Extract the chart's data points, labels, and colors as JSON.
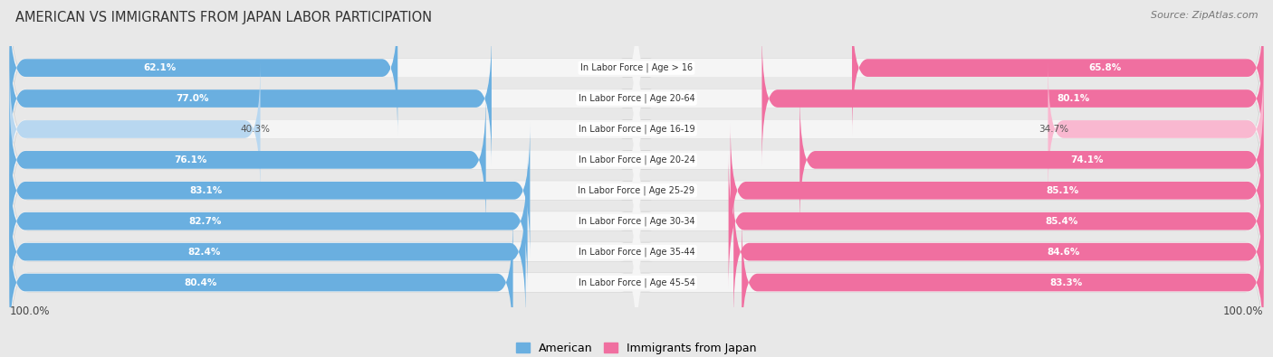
{
  "title": "AMERICAN VS IMMIGRANTS FROM JAPAN LABOR PARTICIPATION",
  "source": "Source: ZipAtlas.com",
  "categories": [
    "In Labor Force | Age > 16",
    "In Labor Force | Age 20-64",
    "In Labor Force | Age 16-19",
    "In Labor Force | Age 20-24",
    "In Labor Force | Age 25-29",
    "In Labor Force | Age 30-34",
    "In Labor Force | Age 35-44",
    "In Labor Force | Age 45-54"
  ],
  "american_values": [
    62.1,
    77.0,
    40.3,
    76.1,
    83.1,
    82.7,
    82.4,
    80.4
  ],
  "japan_values": [
    65.8,
    80.1,
    34.7,
    74.1,
    85.1,
    85.4,
    84.6,
    83.3
  ],
  "american_color": "#6aafe0",
  "american_color_light": "#b8d7f0",
  "japan_color": "#f06fa0",
  "japan_color_light": "#f9b8d0",
  "row_bg_color": "#f5f5f5",
  "outer_bg_color": "#e8e8e8",
  "max_value": 100.0,
  "bar_height": 0.62,
  "legend_american": "American",
  "legend_japan": "Immigrants from Japan",
  "title_fontsize": 10.5,
  "source_fontsize": 8,
  "label_fontsize": 7.5,
  "cat_fontsize": 7.0,
  "bottom_label": "100.0%"
}
